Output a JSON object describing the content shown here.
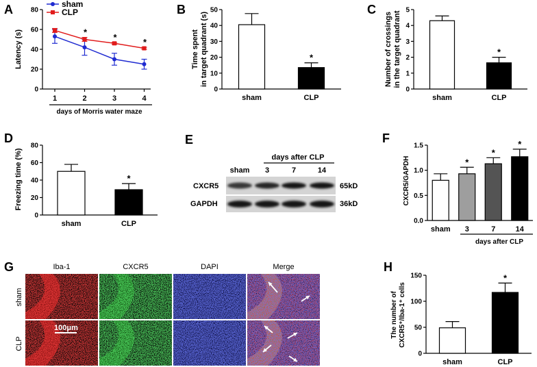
{
  "panel_letters": {
    "A": "A",
    "B": "B",
    "C": "C",
    "D": "D",
    "E": "E",
    "F": "F",
    "G": "G",
    "H": "H"
  },
  "colors": {
    "sham_line": "#1f2bd1",
    "clp_line": "#e11c1c",
    "white_bar": "#ffffff",
    "black_bar": "#000000",
    "gray_bar": "#9e9e9e",
    "dark_gray_bar": "#545454"
  },
  "chart_data": [
    {
      "id": "A",
      "type": "line",
      "x": [
        "1",
        "2",
        "3",
        "4"
      ],
      "series": [
        {
          "name": "sham",
          "values": [
            53,
            42,
            30,
            25
          ],
          "errors": [
            7,
            8,
            6,
            5
          ],
          "color": "#1f2bd1"
        },
        {
          "name": "CLP",
          "values": [
            59,
            50,
            46,
            41
          ],
          "errors": [
            2,
            2,
            1,
            1
          ],
          "color": "#e11c1c"
        }
      ],
      "ylabel": "Latency (s)",
      "xlabel": "days of Morris water maze",
      "yticks": [
        "0",
        "20",
        "40",
        "60",
        "80"
      ],
      "ylim": [
        0,
        80
      ],
      "significance": [
        "",
        "*",
        "*",
        "*"
      ],
      "legend": "top-left"
    },
    {
      "id": "B",
      "type": "bar",
      "categories": [
        "sham",
        "CLP"
      ],
      "values": [
        40.5,
        13.5
      ],
      "errors": [
        7,
        3
      ],
      "ylabel_lines": [
        "Time spent",
        "in target quadrant (s)"
      ],
      "yticks": [
        "0",
        "10",
        "20",
        "30",
        "40",
        "50"
      ],
      "ylim": [
        0,
        50
      ],
      "significance": [
        "",
        "*"
      ]
    },
    {
      "id": "C",
      "type": "bar",
      "categories": [
        "sham",
        "CLP"
      ],
      "values": [
        4.3,
        1.65
      ],
      "errors": [
        0.3,
        0.35
      ],
      "ylabel_lines": [
        "Number of crossings",
        "in the target quadrant"
      ],
      "yticks": [
        "0",
        "1",
        "2",
        "3",
        "4",
        "5"
      ],
      "ylim": [
        0,
        5
      ],
      "significance": [
        "",
        "*"
      ]
    },
    {
      "id": "D",
      "type": "bar",
      "categories": [
        "sham",
        "CLP"
      ],
      "values": [
        50,
        29
      ],
      "errors": [
        8,
        7
      ],
      "ylabel": "Freezing time (%)",
      "yticks": [
        "0",
        "20",
        "40",
        "60",
        "80"
      ],
      "ylim": [
        0,
        80
      ],
      "significance": [
        "",
        "*"
      ]
    },
    {
      "id": "F",
      "type": "bar",
      "categories": [
        "sham",
        "3",
        "7",
        "14"
      ],
      "values": [
        0.8,
        0.93,
        1.13,
        1.27
      ],
      "errors": [
        0.13,
        0.13,
        0.12,
        0.15
      ],
      "ylabel": "CXCR5/GAPDH",
      "yticks": [
        "0.0",
        "0.5",
        "1.0",
        "1.5"
      ],
      "ylim": [
        0,
        1.5
      ],
      "group_label": "days after CLP",
      "significance": [
        "",
        "*",
        "*",
        "*"
      ]
    },
    {
      "id": "H",
      "type": "bar",
      "categories": [
        "sham",
        "CLP"
      ],
      "values": [
        49,
        117
      ],
      "errors": [
        12,
        18
      ],
      "ylabel_main": "The number of",
      "ylabel_sub": "CXCR5⁺/Iba-1⁺ cells",
      "yticks": [
        "0",
        "50",
        "100",
        "150"
      ],
      "ylim": [
        0,
        150
      ],
      "significance": [
        "",
        "*"
      ]
    }
  ],
  "western_blot": {
    "header": "days after CLP",
    "lanes": [
      "sham",
      "3",
      "7",
      "14"
    ],
    "rows": [
      {
        "name": "CXCR5",
        "size": "65kD",
        "intensity": [
          0.55,
          0.7,
          0.85,
          0.9
        ]
      },
      {
        "name": "GAPDH",
        "size": "36kD",
        "intensity": [
          0.9,
          0.9,
          0.9,
          0.9
        ]
      }
    ]
  },
  "micrographs": {
    "columns": [
      "Iba-1",
      "CXCR5",
      "DAPI",
      "Merge"
    ],
    "rows": [
      "sham",
      "CLP"
    ],
    "scale_bar": "100μm"
  }
}
